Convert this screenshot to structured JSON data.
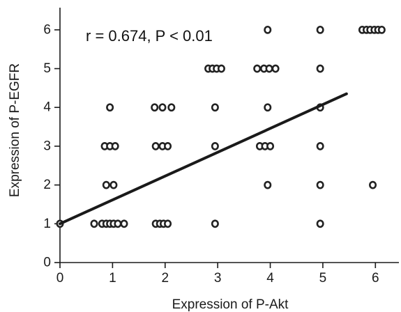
{
  "chart_data": {
    "type": "scatter",
    "title": "",
    "xlabel": "Expression of P-Akt",
    "ylabel": "Expression of P-EGFR",
    "xlim": [
      0,
      6.5
    ],
    "ylim": [
      0,
      6.5
    ],
    "xticks": [
      0,
      1,
      2,
      3,
      4,
      5,
      6
    ],
    "yticks": [
      0,
      1,
      2,
      3,
      4,
      5,
      6
    ],
    "grid": false,
    "annotation": "r = 0.674, P < 0.01",
    "points": [
      {
        "x": 0,
        "y": 1
      },
      {
        "x": 0.65,
        "y": 1
      },
      {
        "x": 0.8,
        "y": 1
      },
      {
        "x": 0.88,
        "y": 1
      },
      {
        "x": 0.95,
        "y": 1
      },
      {
        "x": 1.02,
        "y": 1
      },
      {
        "x": 1.1,
        "y": 1
      },
      {
        "x": 1.22,
        "y": 1
      },
      {
        "x": 1.82,
        "y": 1
      },
      {
        "x": 1.9,
        "y": 1
      },
      {
        "x": 1.97,
        "y": 1
      },
      {
        "x": 2.05,
        "y": 1
      },
      {
        "x": 2.95,
        "y": 1
      },
      {
        "x": 4.95,
        "y": 1
      },
      {
        "x": 0.88,
        "y": 2
      },
      {
        "x": 1.02,
        "y": 2
      },
      {
        "x": 3.95,
        "y": 2
      },
      {
        "x": 4.95,
        "y": 2
      },
      {
        "x": 5.95,
        "y": 2
      },
      {
        "x": 0.85,
        "y": 3
      },
      {
        "x": 0.95,
        "y": 3
      },
      {
        "x": 1.05,
        "y": 3
      },
      {
        "x": 1.82,
        "y": 3
      },
      {
        "x": 1.95,
        "y": 3
      },
      {
        "x": 2.05,
        "y": 3
      },
      {
        "x": 2.95,
        "y": 3
      },
      {
        "x": 3.8,
        "y": 3
      },
      {
        "x": 3.9,
        "y": 3
      },
      {
        "x": 4.0,
        "y": 3
      },
      {
        "x": 4.95,
        "y": 3
      },
      {
        "x": 0.95,
        "y": 4
      },
      {
        "x": 1.8,
        "y": 4
      },
      {
        "x": 1.95,
        "y": 4
      },
      {
        "x": 2.12,
        "y": 4
      },
      {
        "x": 2.95,
        "y": 4
      },
      {
        "x": 3.95,
        "y": 4
      },
      {
        "x": 4.95,
        "y": 4
      },
      {
        "x": 2.82,
        "y": 5
      },
      {
        "x": 2.9,
        "y": 5
      },
      {
        "x": 2.98,
        "y": 5
      },
      {
        "x": 3.07,
        "y": 5
      },
      {
        "x": 3.75,
        "y": 5
      },
      {
        "x": 3.88,
        "y": 5
      },
      {
        "x": 3.98,
        "y": 5
      },
      {
        "x": 4.1,
        "y": 5
      },
      {
        "x": 4.95,
        "y": 5
      },
      {
        "x": 3.95,
        "y": 6
      },
      {
        "x": 4.95,
        "y": 6
      },
      {
        "x": 5.75,
        "y": 6
      },
      {
        "x": 5.83,
        "y": 6
      },
      {
        "x": 5.9,
        "y": 6
      },
      {
        "x": 5.98,
        "y": 6
      },
      {
        "x": 6.05,
        "y": 6
      },
      {
        "x": 6.12,
        "y": 6
      }
    ],
    "trendline": {
      "x": [
        0,
        5.45
      ],
      "y": [
        1.0,
        4.35
      ]
    },
    "colors": {
      "axis": "#1a1a1a",
      "point_stroke": "#222222",
      "trendline": "#1a1a1a"
    }
  }
}
